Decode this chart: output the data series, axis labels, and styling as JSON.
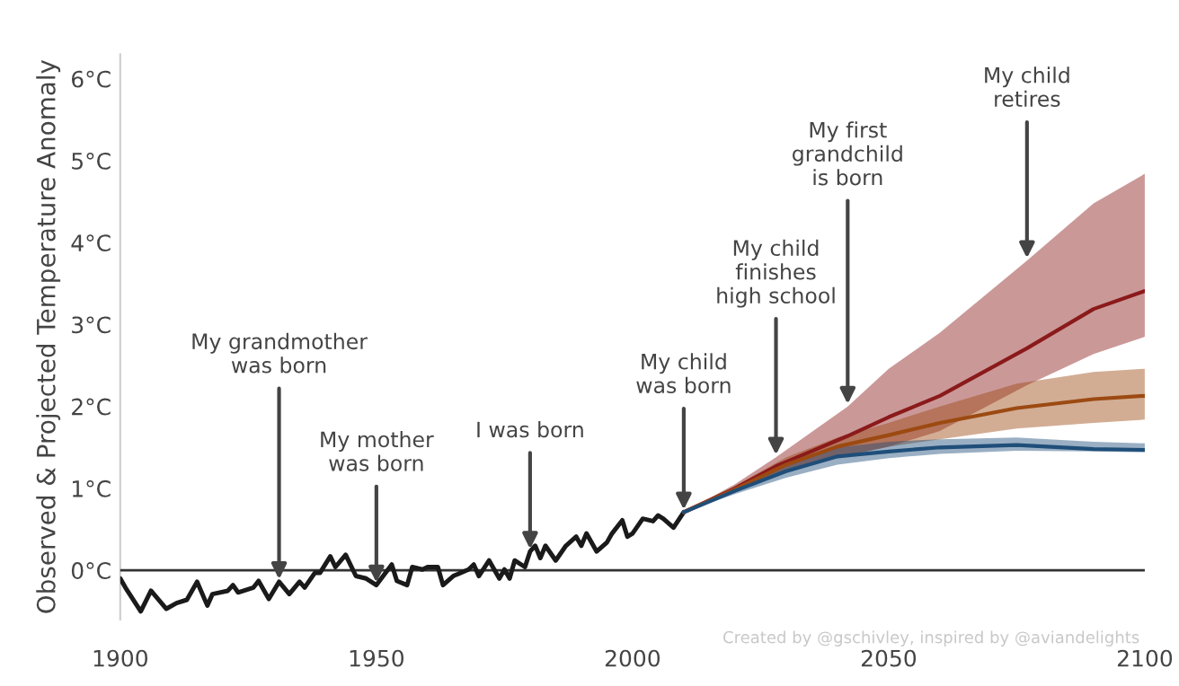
{
  "chart_data": {
    "type": "line",
    "ylabel": "Observed & Projected Temperature Anomaly",
    "xlim": [
      1900,
      2100
    ],
    "xticks": [
      1900,
      1950,
      2000,
      2050,
      2100
    ],
    "ylim": [
      -0.6,
      6.3
    ],
    "yticks": [
      {
        "value": 0,
        "label": "0°C"
      },
      {
        "value": 1,
        "label": "1°C"
      },
      {
        "value": 2,
        "label": "2°C"
      },
      {
        "value": 3,
        "label": "3°C"
      },
      {
        "value": 4,
        "label": "4°C"
      },
      {
        "value": 5,
        "label": "5°C"
      },
      {
        "value": 6,
        "label": "6°C"
      }
    ],
    "grid": false,
    "legend": false,
    "marker": "none",
    "line_style": "solid",
    "ref_lines": [
      {
        "axis": "y",
        "value": 0,
        "color": "#333333"
      }
    ],
    "series": [
      {
        "color": "#1a1a1a",
        "x": [
          1900,
          1901,
          1904,
          1906,
          1909,
          1911,
          1913,
          1915,
          1917,
          1918,
          1921,
          1922,
          1923,
          1926,
          1927,
          1929,
          1931,
          1933,
          1935,
          1936,
          1938,
          1939,
          1941,
          1942,
          1944,
          1946,
          1948,
          1950,
          1953,
          1954,
          1956,
          1957,
          1959,
          1960,
          1962,
          1963,
          1965,
          1968,
          1969,
          1970,
          1972,
          1974,
          1975,
          1976,
          1977,
          1979,
          1980,
          1981,
          1982,
          1983,
          1985,
          1987,
          1989,
          1990,
          1991,
          1993,
          1995,
          1996,
          1998,
          1999,
          2000,
          2002,
          2004,
          2005,
          2006,
          2008,
          2010
        ],
        "values": [
          -0.1,
          -0.21,
          -0.5,
          -0.25,
          -0.47,
          -0.4,
          -0.36,
          -0.14,
          -0.43,
          -0.29,
          -0.25,
          -0.18,
          -0.27,
          -0.21,
          -0.13,
          -0.35,
          -0.14,
          -0.29,
          -0.14,
          -0.21,
          -0.03,
          -0.03,
          0.17,
          0.04,
          0.19,
          -0.07,
          -0.1,
          -0.18,
          0.07,
          -0.13,
          -0.18,
          0.04,
          0.01,
          0.04,
          0.04,
          -0.18,
          -0.07,
          0.01,
          0.07,
          -0.07,
          0.12,
          -0.1,
          0.01,
          -0.1,
          0.12,
          0.04,
          0.23,
          0.3,
          0.15,
          0.3,
          0.12,
          0.3,
          0.41,
          0.3,
          0.45,
          0.23,
          0.34,
          0.45,
          0.61,
          0.41,
          0.45,
          0.63,
          0.6,
          0.67,
          0.63,
          0.52,
          0.71
        ]
      },
      {
        "color": "#8b1a1a",
        "x": [
          2010,
          2020,
          2028,
          2042,
          2050,
          2060,
          2077,
          2090,
          2100
        ],
        "values": [
          0.71,
          1.0,
          1.27,
          1.64,
          1.87,
          2.13,
          2.71,
          3.19,
          3.41
        ],
        "lower": [
          0.71,
          0.95,
          1.18,
          1.4,
          1.51,
          1.7,
          2.26,
          2.64,
          2.85
        ],
        "upper": [
          0.71,
          1.05,
          1.38,
          2.0,
          2.46,
          2.9,
          3.78,
          4.48,
          4.84
        ]
      },
      {
        "color": "#9c4a12",
        "x": [
          2010,
          2020,
          2030,
          2040,
          2050,
          2060,
          2075,
          2090,
          2100
        ],
        "values": [
          0.71,
          0.99,
          1.29,
          1.51,
          1.65,
          1.8,
          1.98,
          2.09,
          2.13
        ],
        "lower": [
          0.71,
          0.95,
          1.2,
          1.38,
          1.51,
          1.6,
          1.73,
          1.8,
          1.84
        ],
        "upper": [
          0.71,
          1.03,
          1.38,
          1.62,
          1.8,
          2.0,
          2.28,
          2.42,
          2.46
        ]
      },
      {
        "color": "#1f4e79",
        "x": [
          2010,
          2020,
          2030,
          2040,
          2050,
          2060,
          2075,
          2090,
          2100
        ],
        "values": [
          0.71,
          0.97,
          1.21,
          1.39,
          1.45,
          1.5,
          1.53,
          1.48,
          1.47
        ],
        "lower": [
          0.71,
          0.93,
          1.13,
          1.29,
          1.37,
          1.42,
          1.46,
          1.45,
          1.44
        ],
        "upper": [
          0.71,
          1.01,
          1.29,
          1.5,
          1.57,
          1.6,
          1.62,
          1.57,
          1.55
        ]
      }
    ],
    "annotations": [
      {
        "text": "My grandmother\nwas born",
        "x": 1931,
        "y": -0.14
      },
      {
        "text": "My mother\nwas born",
        "x": 1950,
        "y": -0.18
      },
      {
        "text": "I was born",
        "x": 1980,
        "y": 0.23
      },
      {
        "text": "My child\nwas born",
        "x": 2010,
        "y": 0.71
      },
      {
        "text": "My child\nfinishes\nhigh school",
        "x": 2028,
        "y": 1.38
      },
      {
        "text": "My first\ngrandchild\nis born",
        "x": 2042,
        "y": 2.0
      },
      {
        "text": "My child\nretires",
        "x": 2077,
        "y": 3.78
      },
      "Created by @gschivley, inspired by @aviandelights"
    ]
  }
}
